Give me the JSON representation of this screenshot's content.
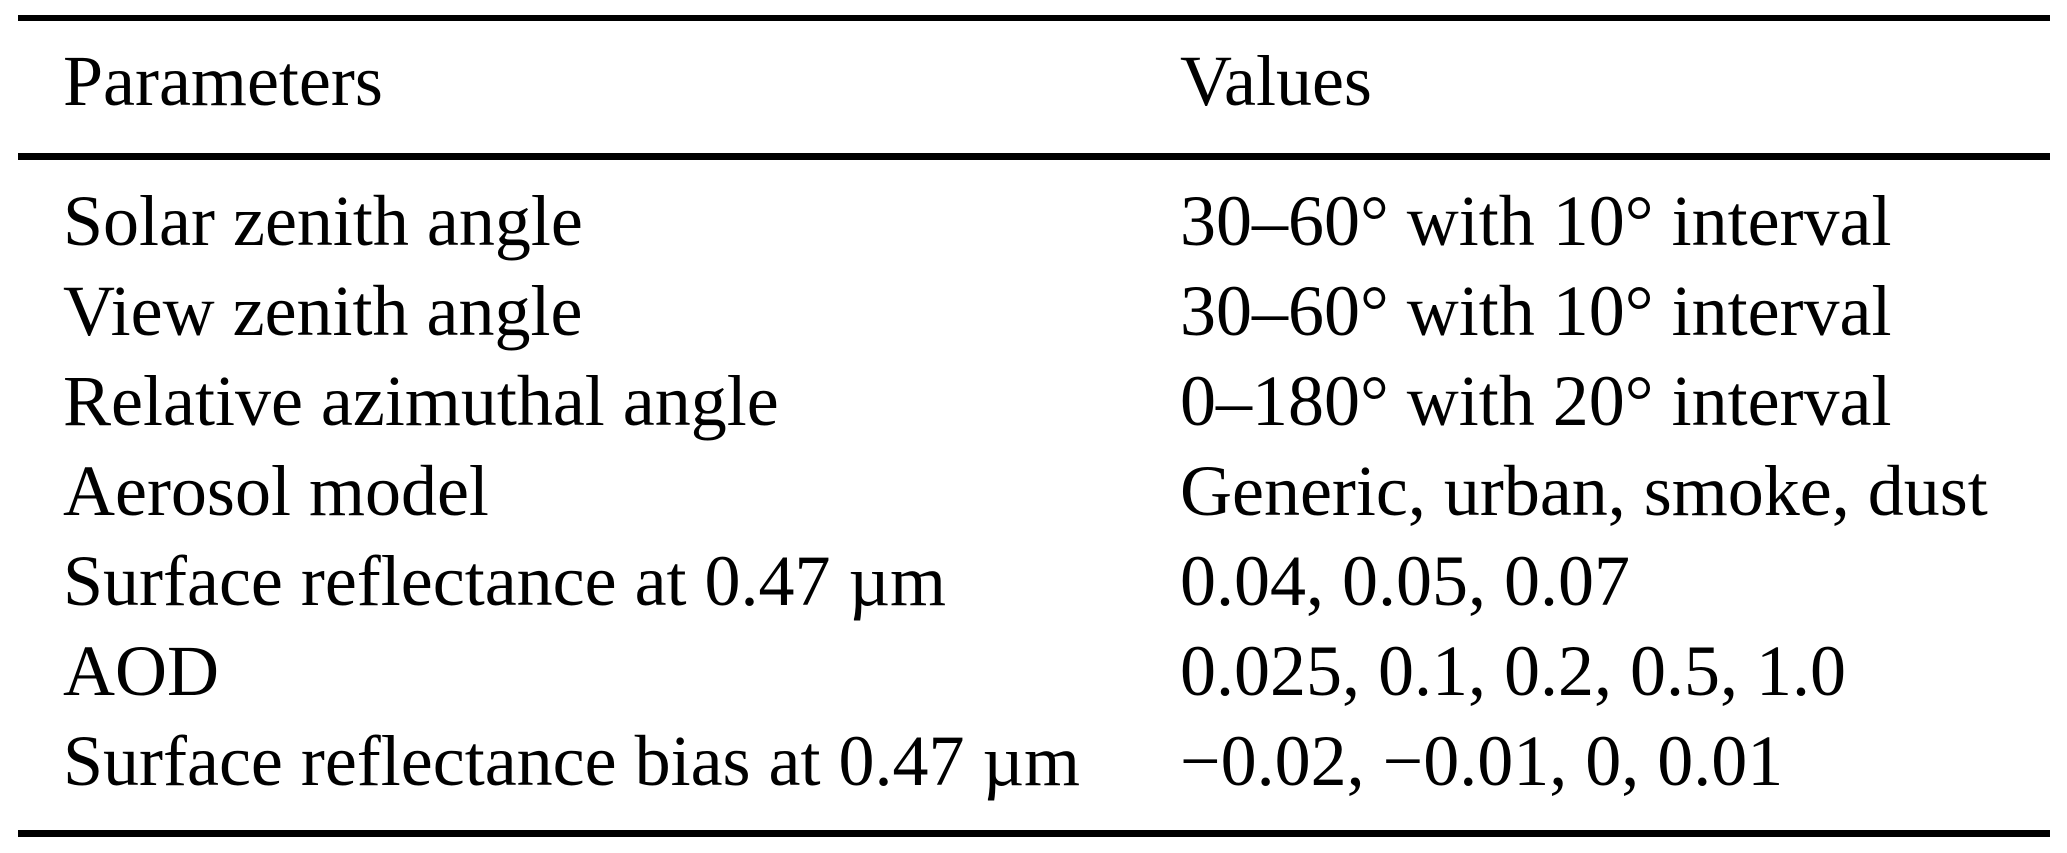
{
  "page": {
    "background_color": "#ffffff",
    "text_color": "#000000",
    "rule_color": "#000000"
  },
  "table": {
    "header": {
      "parameters_label": "Parameters",
      "values_label": "Values"
    },
    "rows": [
      {
        "parameter": "Solar zenith angle",
        "value": "30–60° with 10° interval"
      },
      {
        "parameter": "View zenith angle",
        "value": "30–60° with 10° interval"
      },
      {
        "parameter": "Relative azimuthal angle",
        "value": "0–180° with 20° interval"
      },
      {
        "parameter": "Aerosol model",
        "value": "Generic, urban, smoke, dust"
      },
      {
        "parameter": "Surface reflectance at 0.47 µm",
        "value": "0.04, 0.05, 0.07"
      },
      {
        "parameter": "AOD",
        "value": "0.025, 0.1, 0.2, 0.5, 1.0"
      },
      {
        "parameter": "Surface reflectance bias at 0.47 µm",
        "value": "−0.02, −0.01, 0, 0.01"
      }
    ]
  }
}
